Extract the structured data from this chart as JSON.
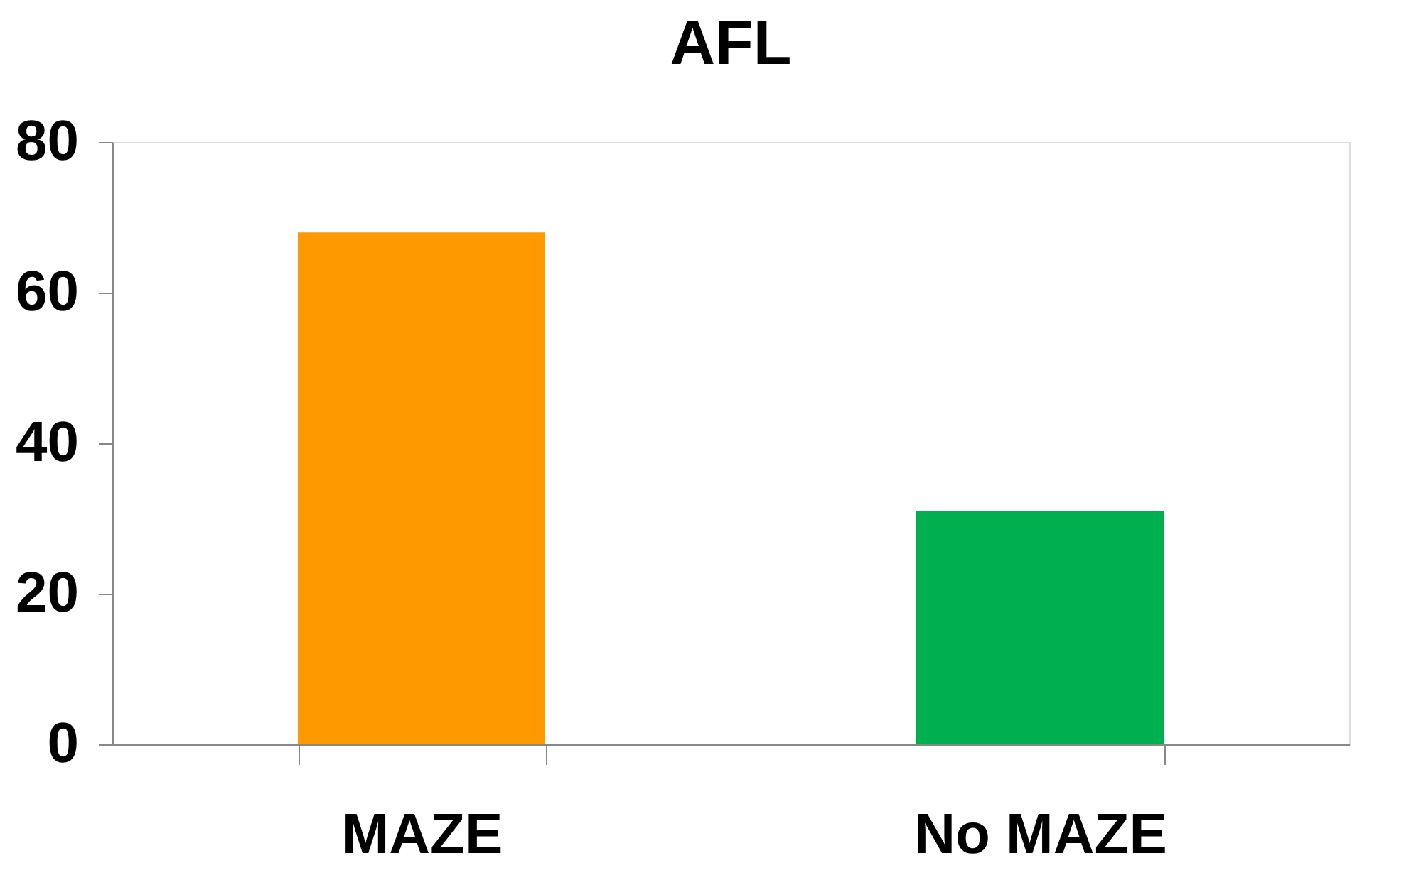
{
  "chart_data": {
    "type": "bar",
    "title": "AFL",
    "categories": [
      "MAZE",
      "No MAZE"
    ],
    "values": [
      68,
      31
    ],
    "colors": [
      "#ff9900",
      "#00b050"
    ],
    "ylim": [
      0,
      80
    ],
    "yticks": [
      0,
      20,
      40,
      60,
      80
    ],
    "grid": false,
    "legend": false
  }
}
